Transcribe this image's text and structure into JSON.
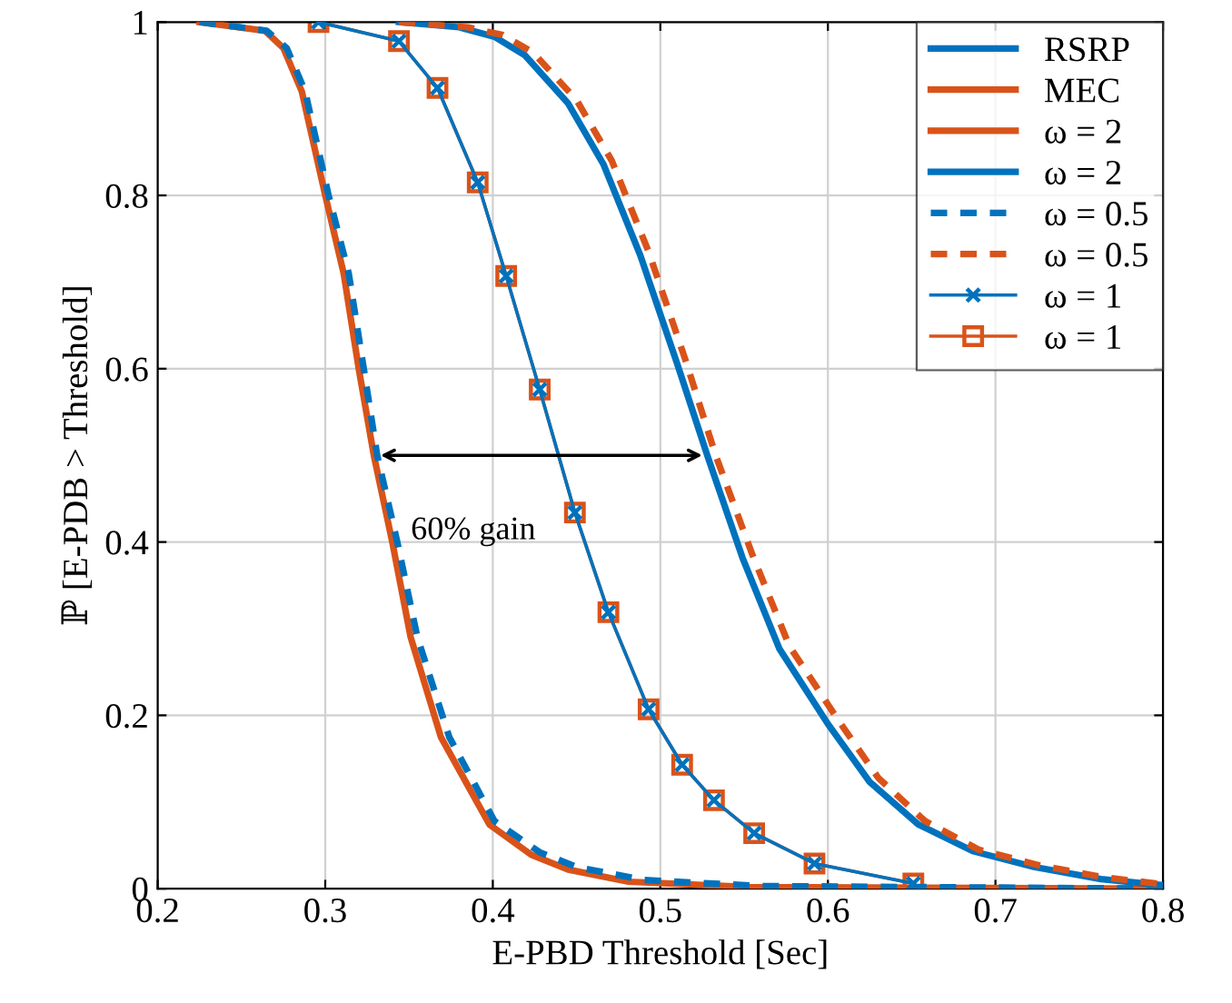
{
  "chart_data": {
    "type": "line",
    "xlabel": "E-PBD Threshold [Sec]",
    "ylabel": "ℙ [E-PDB > Threshold]",
    "xlim": [
      0.2,
      0.8
    ],
    "ylim": [
      0,
      1
    ],
    "xticks": [
      0.2,
      0.3,
      0.4,
      0.5,
      0.6,
      0.7,
      0.8
    ],
    "yticks": [
      0,
      0.2,
      0.4,
      0.6,
      0.8,
      1
    ],
    "grid": true,
    "legend": "top right",
    "annotations": [
      {
        "text": "60% gain",
        "x": 0.33,
        "y": 0.5
      }
    ],
    "series": [
      {
        "name": "RSRP",
        "color": "#0072bd"
      },
      {
        "name": "MEC",
        "color": "#d95319"
      },
      {
        "name": "ω = 2",
        "color": "#d95319",
        "line_style": "solid",
        "x": [
          0.225,
          0.264,
          0.275,
          0.286,
          0.3,
          0.311,
          0.32,
          0.329,
          0.34,
          0.351,
          0.369,
          0.398,
          0.423,
          0.445,
          0.481,
          0.553,
          0.8
        ],
        "values": [
          1,
          0.99,
          0.97,
          0.92,
          0.8,
          0.71,
          0.6,
          0.5,
          0.4,
          0.29,
          0.175,
          0.074,
          0.039,
          0.022,
          0.008,
          0.002,
          0
        ]
      },
      {
        "name": "ω = 2",
        "color": "#0072bd",
        "line_style": "solid",
        "x": [
          0.344,
          0.38,
          0.401,
          0.419,
          0.445,
          0.466,
          0.488,
          0.51,
          0.528,
          0.549,
          0.571,
          0.6,
          0.625,
          0.654,
          0.687,
          0.723,
          0.763,
          0.8
        ],
        "values": [
          1,
          0.994,
          0.983,
          0.962,
          0.906,
          0.836,
          0.731,
          0.606,
          0.5,
          0.382,
          0.277,
          0.19,
          0.123,
          0.074,
          0.043,
          0.025,
          0.011,
          0.004
        ]
      },
      {
        "name": "ω = 0.5",
        "color": "#0072bd",
        "line_style": "dashed",
        "x": [
          0.225,
          0.265,
          0.277,
          0.288,
          0.302,
          0.314,
          0.323,
          0.331,
          0.343,
          0.355,
          0.374,
          0.401,
          0.428,
          0.45,
          0.49,
          0.56,
          0.8
        ],
        "values": [
          1,
          0.99,
          0.97,
          0.92,
          0.8,
          0.71,
          0.6,
          0.5,
          0.4,
          0.29,
          0.175,
          0.078,
          0.042,
          0.025,
          0.01,
          0.003,
          0
        ]
      },
      {
        "name": "ω = 0.5",
        "color": "#d95319",
        "line_style": "dashed",
        "x": [
          0.344,
          0.385,
          0.406,
          0.424,
          0.45,
          0.471,
          0.493,
          0.515,
          0.533,
          0.555,
          0.577,
          0.606,
          0.63,
          0.658,
          0.69,
          0.726,
          0.765,
          0.8
        ],
        "values": [
          1,
          0.994,
          0.985,
          0.965,
          0.91,
          0.84,
          0.735,
          0.61,
          0.5,
          0.385,
          0.28,
          0.195,
          0.128,
          0.078,
          0.045,
          0.027,
          0.013,
          0.005
        ]
      },
      {
        "name": "ω = 1",
        "color": "#0072bd",
        "line_style": "solid",
        "marker": "cross",
        "x": [
          0.296,
          0.344,
          0.367,
          0.391,
          0.408,
          0.428,
          0.449,
          0.469,
          0.493,
          0.513,
          0.532,
          0.556,
          0.592,
          0.651
        ],
        "values": [
          1,
          0.978,
          0.924,
          0.815,
          0.707,
          0.576,
          0.434,
          0.319,
          0.207,
          0.143,
          0.102,
          0.064,
          0.029,
          0.006
        ]
      },
      {
        "name": "ω = 1",
        "color": "#d95319",
        "line_style": "solid",
        "marker": "square",
        "x": [
          0.296,
          0.344,
          0.367,
          0.391,
          0.408,
          0.428,
          0.449,
          0.469,
          0.493,
          0.513,
          0.532,
          0.556,
          0.592,
          0.651
        ],
        "values": [
          1,
          0.978,
          0.924,
          0.815,
          0.707,
          0.576,
          0.434,
          0.319,
          0.207,
          0.143,
          0.102,
          0.064,
          0.029,
          0.006
        ]
      }
    ]
  }
}
